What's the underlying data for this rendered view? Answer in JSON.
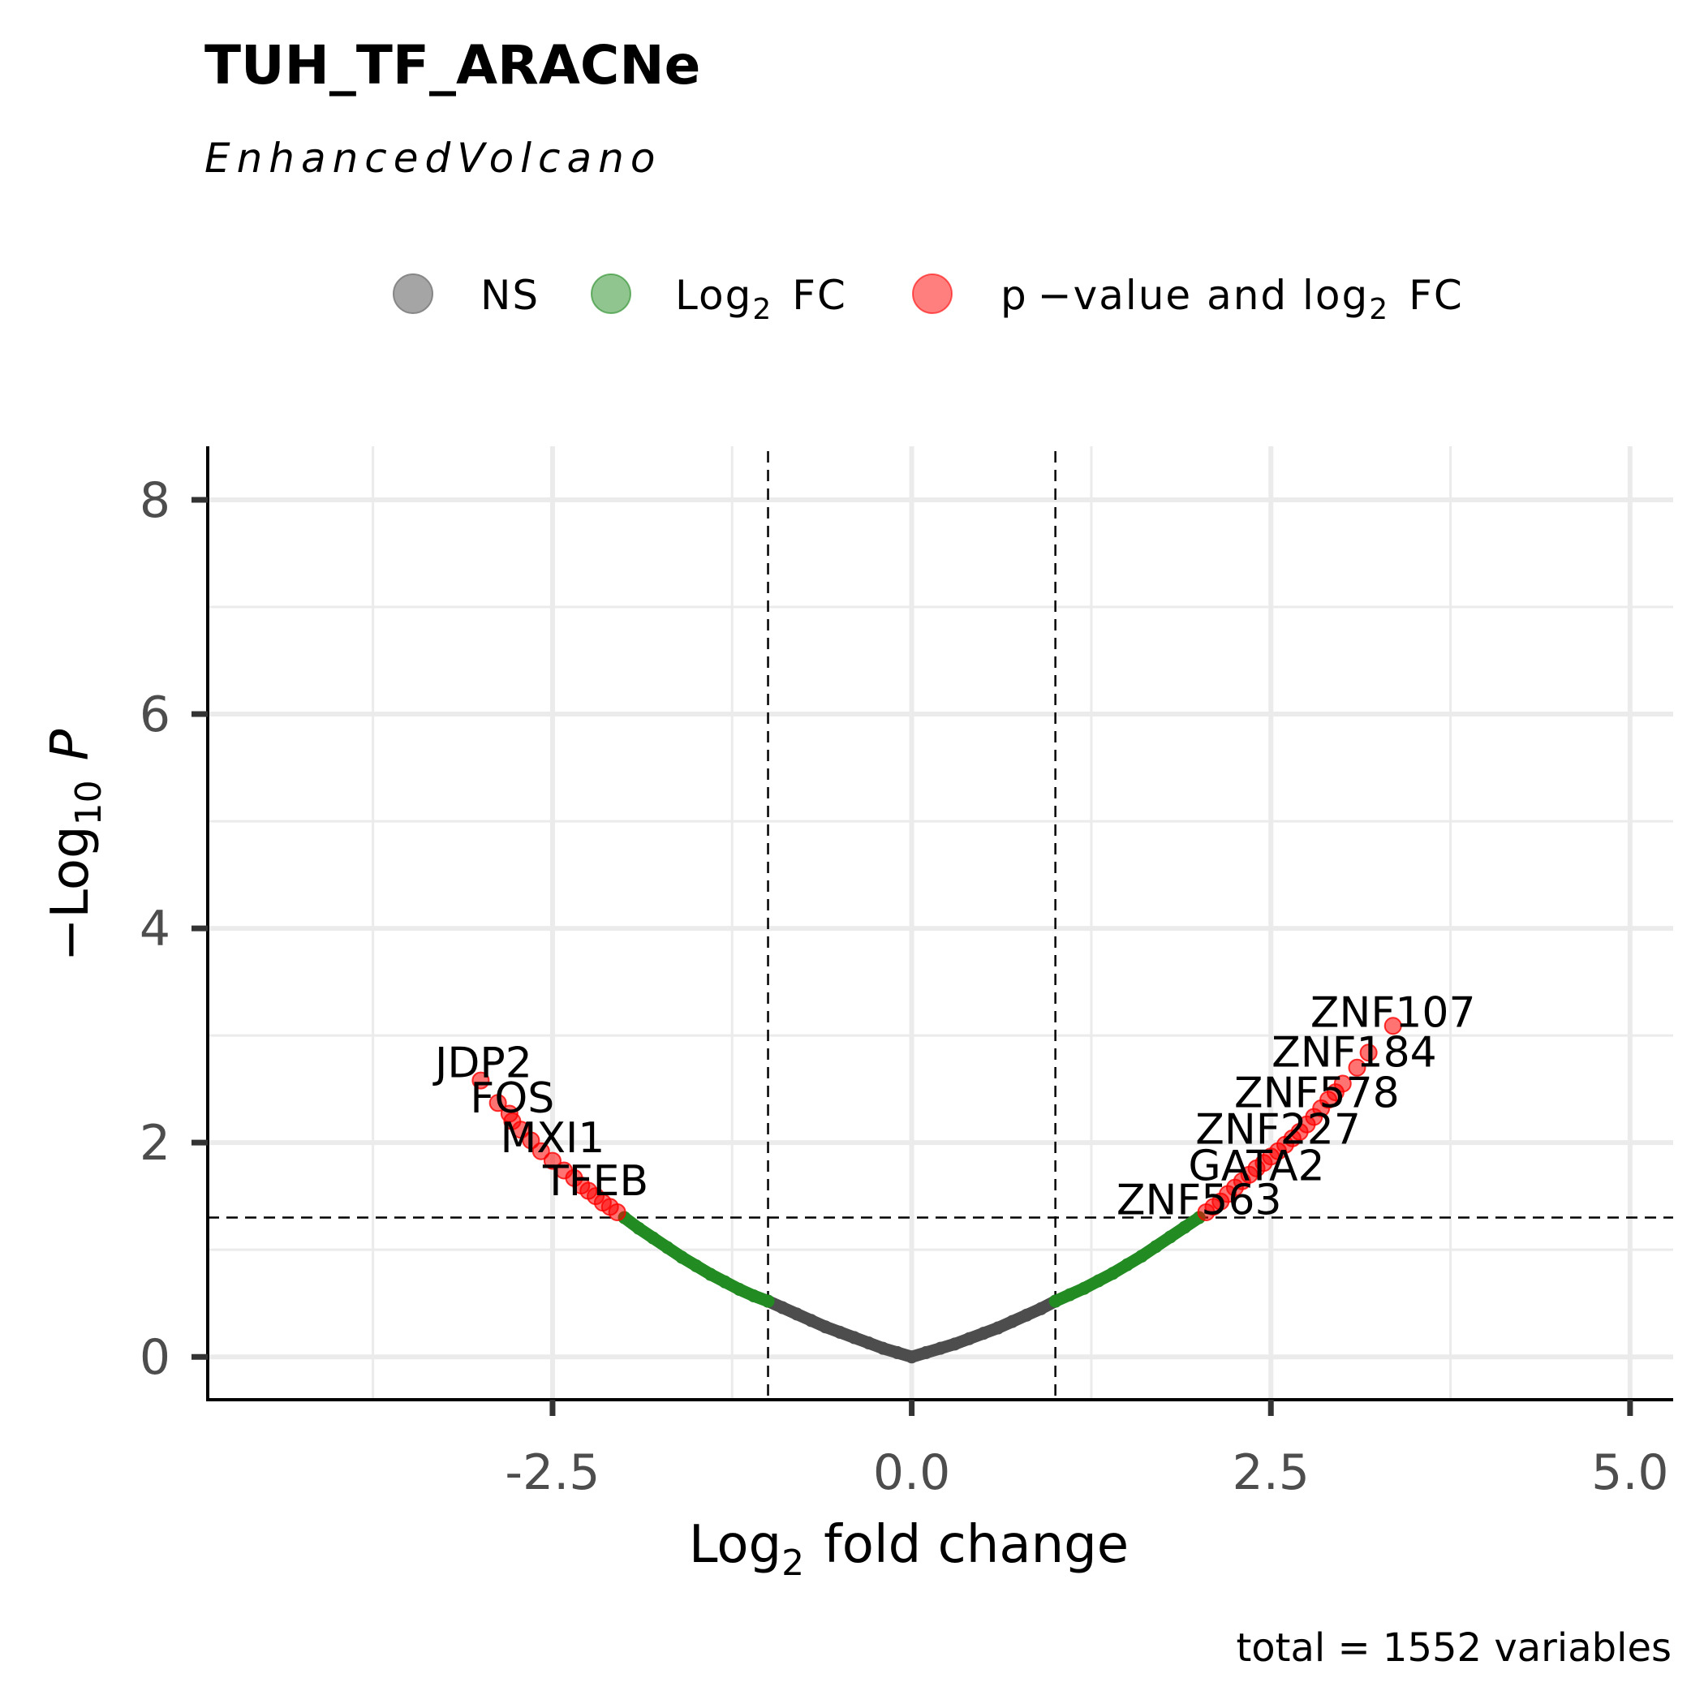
{
  "chart_data": {
    "type": "scatter",
    "title": "TUH_TF_ARACNe",
    "subtitle": "EnhancedVolcano",
    "xlabel": "fold change",
    "xlabel_prefix": "Log",
    "xlabel_sub": "2",
    "ylabel": "P",
    "ylabel_prefix": "−Log",
    "ylabel_sub": "10",
    "caption": "total = 1552 variables",
    "xlim": [
      -4.9,
      5.3
    ],
    "ylim": [
      -0.4,
      8.5
    ],
    "x_ticks": [
      -2.5,
      0.0,
      2.5,
      5.0
    ],
    "x_tick_labels": [
      "-2.5",
      "0.0",
      "2.5",
      "5.0"
    ],
    "y_ticks": [
      0,
      2,
      4,
      6,
      8
    ],
    "y_tick_labels": [
      "0",
      "2",
      "4",
      "6",
      "8"
    ],
    "grid": true,
    "legend_position": "top",
    "fc_cutoff": 1.0,
    "p_cutoff_neglog10": 1.3,
    "legend": [
      {
        "key": "ns",
        "prefix": "NS",
        "sub": "",
        "suffix": "",
        "color": "#7f7f7f"
      },
      {
        "key": "fc",
        "prefix": "Log",
        "sub": "2",
        "suffix": "FC",
        "color": "#228b22"
      },
      {
        "key": "sig",
        "prefix": "p −value  and  log",
        "sub": "2",
        "suffix": "FC",
        "color": "#ff0000"
      }
    ],
    "colors": {
      "ns": "#4d4d4d",
      "fc": "#228b22",
      "sig": "#ff0000"
    },
    "series": [
      {
        "key": "ns",
        "points": [
          [
            -1.0,
            0.52
          ],
          [
            -0.9,
            0.46
          ],
          [
            -0.8,
            0.4
          ],
          [
            -0.7,
            0.34
          ],
          [
            -0.6,
            0.28
          ],
          [
            -0.5,
            0.23
          ],
          [
            -0.4,
            0.18
          ],
          [
            -0.3,
            0.13
          ],
          [
            -0.2,
            0.08
          ],
          [
            -0.1,
            0.04
          ],
          [
            0.0,
            0.0
          ],
          [
            0.1,
            0.04
          ],
          [
            0.2,
            0.08
          ],
          [
            0.3,
            0.12
          ],
          [
            0.4,
            0.17
          ],
          [
            0.5,
            0.22
          ],
          [
            0.6,
            0.27
          ],
          [
            0.7,
            0.33
          ],
          [
            0.8,
            0.39
          ],
          [
            0.9,
            0.45
          ],
          [
            1.0,
            0.52
          ]
        ]
      },
      {
        "key": "fc",
        "points": [
          [
            -2.0,
            1.3
          ],
          [
            -1.9,
            1.2
          ],
          [
            -1.8,
            1.11
          ],
          [
            -1.7,
            1.02
          ],
          [
            -1.6,
            0.93
          ],
          [
            -1.5,
            0.85
          ],
          [
            -1.4,
            0.77
          ],
          [
            -1.3,
            0.7
          ],
          [
            -1.2,
            0.63
          ],
          [
            -1.1,
            0.57
          ],
          [
            -1.0,
            0.52
          ],
          [
            1.0,
            0.52
          ],
          [
            1.1,
            0.58
          ],
          [
            1.2,
            0.64
          ],
          [
            1.3,
            0.71
          ],
          [
            1.4,
            0.78
          ],
          [
            1.5,
            0.86
          ],
          [
            1.6,
            0.94
          ],
          [
            1.7,
            1.03
          ],
          [
            1.8,
            1.12
          ],
          [
            1.9,
            1.21
          ],
          [
            2.0,
            1.3
          ]
        ]
      },
      {
        "key": "sig",
        "points": [
          [
            -3.0,
            2.58
          ],
          [
            -2.88,
            2.37
          ],
          [
            -2.8,
            2.27
          ],
          [
            -2.78,
            2.2
          ],
          [
            -2.72,
            2.12
          ],
          [
            -2.65,
            2.02
          ],
          [
            -2.58,
            1.92
          ],
          [
            -2.5,
            1.83
          ],
          [
            -2.42,
            1.74
          ],
          [
            -2.35,
            1.67
          ],
          [
            -2.3,
            1.6
          ],
          [
            -2.25,
            1.55
          ],
          [
            -2.2,
            1.5
          ],
          [
            -2.15,
            1.44
          ],
          [
            -2.1,
            1.4
          ],
          [
            -2.05,
            1.35
          ],
          [
            2.05,
            1.35
          ],
          [
            2.1,
            1.4
          ],
          [
            2.15,
            1.45
          ],
          [
            2.2,
            1.52
          ],
          [
            2.25,
            1.58
          ],
          [
            2.3,
            1.64
          ],
          [
            2.35,
            1.7
          ],
          [
            2.4,
            1.76
          ],
          [
            2.45,
            1.81
          ],
          [
            2.5,
            1.87
          ],
          [
            2.55,
            1.92
          ],
          [
            2.6,
            1.98
          ],
          [
            2.65,
            2.04
          ],
          [
            2.7,
            2.1
          ],
          [
            2.75,
            2.17
          ],
          [
            2.8,
            2.24
          ],
          [
            2.85,
            2.32
          ],
          [
            2.9,
            2.4
          ],
          [
            2.95,
            2.47
          ],
          [
            3.0,
            2.55
          ],
          [
            3.1,
            2.7
          ],
          [
            3.18,
            2.84
          ],
          [
            3.35,
            3.09
          ]
        ]
      }
    ],
    "labels": [
      {
        "text": "JDP2",
        "x": -2.98,
        "y": 2.58
      },
      {
        "text": "FOS",
        "x": -2.78,
        "y": 2.25
      },
      {
        "text": "MXI1",
        "x": -2.5,
        "y": 1.88
      },
      {
        "text": "TFEB",
        "x": -2.2,
        "y": 1.48
      },
      {
        "text": "ZNF107",
        "x": 3.35,
        "y": 3.05
      },
      {
        "text": "ZNF184",
        "x": 3.08,
        "y": 2.68
      },
      {
        "text": "ZNF578",
        "x": 2.82,
        "y": 2.3
      },
      {
        "text": "ZNF227",
        "x": 2.55,
        "y": 1.96
      },
      {
        "text": "GATA2",
        "x": 2.4,
        "y": 1.62
      },
      {
        "text": "ZNF563",
        "x": 2.0,
        "y": 1.3
      }
    ]
  }
}
